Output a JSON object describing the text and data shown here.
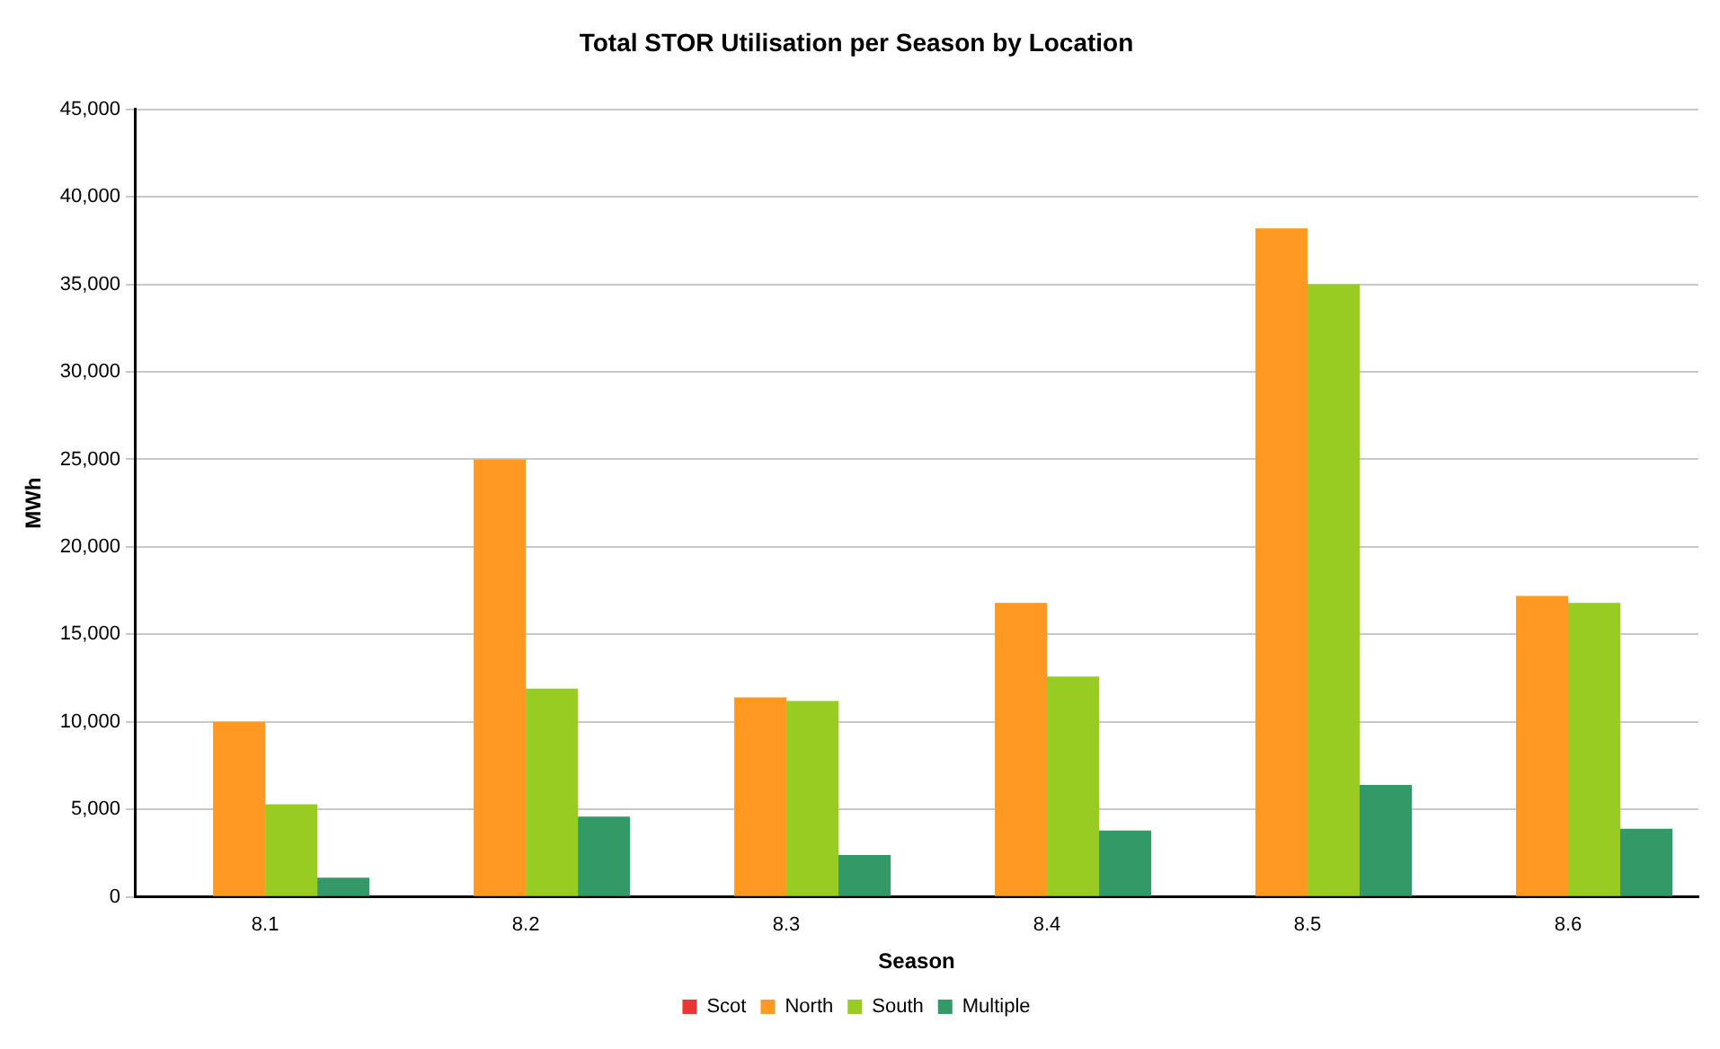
{
  "chart_data": {
    "type": "bar",
    "title": "Total STOR Utilisation per Season by Location",
    "xlabel": "Season",
    "ylabel": "MWh",
    "categories": [
      "8.1",
      "8.2",
      "8.3",
      "8.4",
      "8.5",
      "8.6"
    ],
    "series": [
      {
        "name": "Scot",
        "color": "#ee3333",
        "values": [
          0,
          0,
          0,
          0,
          0,
          0
        ]
      },
      {
        "name": "North",
        "color": "#ff9922",
        "values": [
          10000,
          25000,
          11400,
          16800,
          38200,
          17200
        ]
      },
      {
        "name": "South",
        "color": "#99cc22",
        "values": [
          5300,
          11900,
          11200,
          12600,
          35000,
          16800
        ]
      },
      {
        "name": "Multiple",
        "color": "#339966",
        "values": [
          1100,
          4600,
          2400,
          3800,
          6400,
          3900
        ]
      }
    ],
    "ylim": [
      0,
      45000
    ],
    "yticks": [
      {
        "value": 0,
        "label": "0"
      },
      {
        "value": 5000,
        "label": "5,000"
      },
      {
        "value": 10000,
        "label": "10,000"
      },
      {
        "value": 15000,
        "label": "15,000"
      },
      {
        "value": 20000,
        "label": "20,000"
      },
      {
        "value": 25000,
        "label": "25,000"
      },
      {
        "value": 30000,
        "label": "30,000"
      },
      {
        "value": 35000,
        "label": "35,000"
      },
      {
        "value": 40000,
        "label": "40,000"
      },
      {
        "value": 45000,
        "label": "45,000"
      }
    ],
    "grid": "y",
    "legend": "bottom"
  }
}
